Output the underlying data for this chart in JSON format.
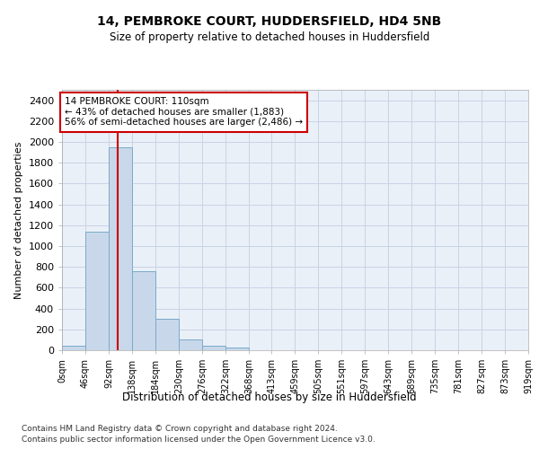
{
  "title": "14, PEMBROKE COURT, HUDDERSFIELD, HD4 5NB",
  "subtitle": "Size of property relative to detached houses in Huddersfield",
  "xlabel": "Distribution of detached houses by size in Huddersfield",
  "ylabel": "Number of detached properties",
  "bar_color": "#c8d8ea",
  "bar_edge_color": "#7aaac8",
  "bin_edges": [
    0,
    46,
    92,
    138,
    184,
    230,
    276,
    322,
    368,
    413,
    459,
    505,
    551,
    597,
    643,
    689,
    735,
    781,
    827,
    873,
    919
  ],
  "bin_labels": [
    "0sqm",
    "46sqm",
    "92sqm",
    "138sqm",
    "184sqm",
    "230sqm",
    "276sqm",
    "322sqm",
    "368sqm",
    "413sqm",
    "459sqm",
    "505sqm",
    "551sqm",
    "597sqm",
    "643sqm",
    "689sqm",
    "735sqm",
    "781sqm",
    "827sqm",
    "873sqm",
    "919sqm"
  ],
  "bar_heights": [
    40,
    1140,
    1950,
    760,
    300,
    100,
    45,
    30,
    0,
    0,
    0,
    0,
    0,
    0,
    0,
    0,
    0,
    0,
    0,
    0
  ],
  "vline_x": 110,
  "vline_color": "#cc0000",
  "annotation_text": "14 PEMBROKE COURT: 110sqm\n← 43% of detached houses are smaller (1,883)\n56% of semi-detached houses are larger (2,486) →",
  "annotation_box_color": "#ffffff",
  "annotation_box_edge": "#cc0000",
  "ylim": [
    0,
    2500
  ],
  "yticks": [
    0,
    200,
    400,
    600,
    800,
    1000,
    1200,
    1400,
    1600,
    1800,
    2000,
    2200,
    2400
  ],
  "footer_line1": "Contains HM Land Registry data © Crown copyright and database right 2024.",
  "footer_line2": "Contains public sector information licensed under the Open Government Licence v3.0.",
  "background_color": "#ffffff",
  "plot_bg_color": "#eaf0f8",
  "grid_color": "#c8d4e4"
}
